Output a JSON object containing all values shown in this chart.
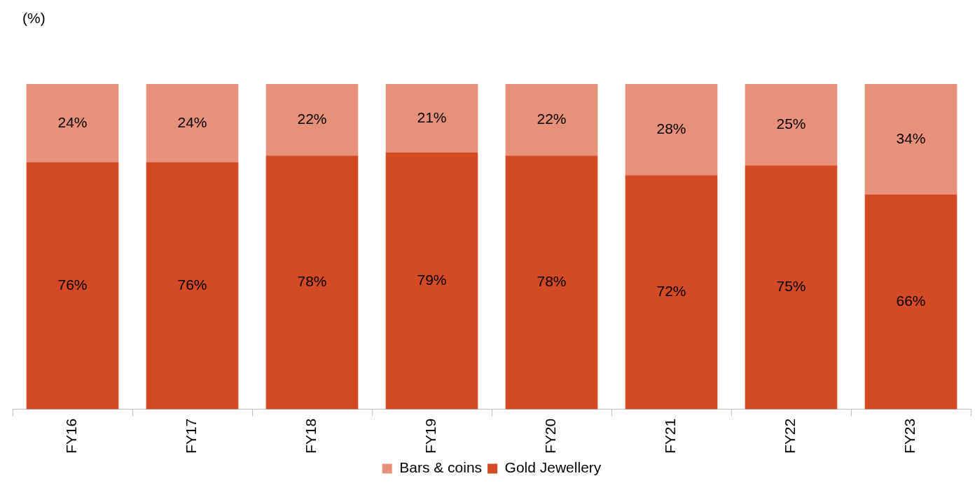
{
  "chart_data": {
    "type": "bar",
    "ylabel": "(%)",
    "categories": [
      "FY16",
      "FY17",
      "FY18",
      "FY19",
      "FY20",
      "FY21",
      "FY22",
      "FY23"
    ],
    "stacked": true,
    "tick_labels": "x",
    "grid": false,
    "legend": "bottom",
    "series": [
      {
        "name": "Gold Jewellery",
        "color": "#d44a24",
        "values": [
          76,
          76,
          78,
          79,
          78,
          72,
          75,
          66
        ],
        "value_labels": [
          "76%",
          "76%",
          "78%",
          "79%",
          "78%",
          "72%",
          "75%",
          "66%"
        ]
      },
      {
        "name": "Bars & coins",
        "color": "#e8917a",
        "values": [
          24,
          24,
          22,
          21,
          22,
          28,
          25,
          34
        ],
        "value_labels": [
          "24%",
          "24%",
          "22%",
          "21%",
          "22%",
          "28%",
          "25%",
          "34%"
        ]
      }
    ]
  }
}
